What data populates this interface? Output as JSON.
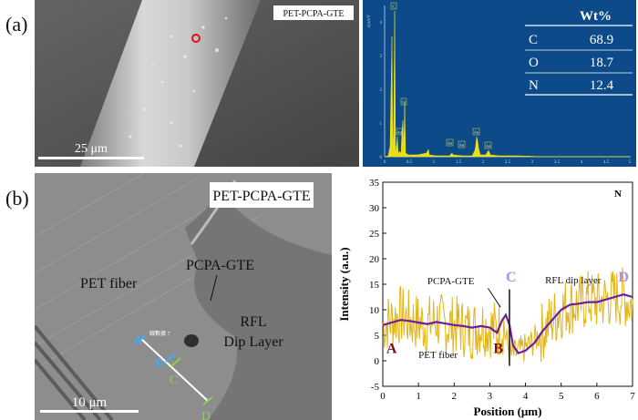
{
  "figure": {
    "panel_a_label": "(a)",
    "panel_b_label": "(b)"
  },
  "panel_a": {
    "sem_tag": "PET-PCPA-GTE",
    "scale_bar": "25 μm",
    "eds": {
      "table_header": "Wt%",
      "rows": [
        {
          "element": "C",
          "value": "68.9"
        },
        {
          "element": "O",
          "value": "18.7"
        },
        {
          "element": "N",
          "value": "12.4"
        }
      ],
      "peak_labels": [
        "C",
        "O",
        "Au",
        "Au",
        "Au",
        "Au",
        "Au"
      ],
      "x_ticks": [
        "0",
        "0.5",
        "1",
        "1.5",
        "2",
        "2.5",
        "3",
        "3.5",
        "4",
        "4.5",
        "5"
      ],
      "y_ticks": [
        "0",
        "1",
        "2",
        "3",
        "4"
      ],
      "y_unit": "cps/eV",
      "colors": {
        "background": "#0d4a8a",
        "spectrum": "#e9df1c",
        "table_line": "#ffffff"
      }
    }
  },
  "panel_b": {
    "sem_tag": "PET-PCPA-GTE",
    "scale_bar": "10 μm",
    "labels": {
      "pet_fiber": "PET fiber",
      "pcpa_gte": "PCPA-GTE",
      "rfl_line1": "RFL",
      "rfl_line2": "Dip Layer",
      "line_tag": "線數據 7"
    },
    "points": [
      "A",
      "B",
      "C",
      "D"
    ]
  },
  "chart_data": {
    "type": "line",
    "title": "",
    "xlabel": "Position (μm)",
    "ylabel": "Intensity (a.u.)",
    "xlim": [
      0,
      7
    ],
    "ylim": [
      -5,
      35
    ],
    "x_ticks": [
      0,
      1,
      2,
      3,
      4,
      5,
      6,
      7
    ],
    "y_ticks": [
      -5,
      0,
      5,
      10,
      15,
      20,
      25,
      30,
      35
    ],
    "legend": "N",
    "series": [
      {
        "name": "raw",
        "color": "#e3b417",
        "x": [
          0,
          0.25,
          0.5,
          0.75,
          1,
          1.25,
          1.5,
          1.75,
          2,
          2.25,
          2.5,
          2.75,
          3,
          3.2,
          3.4,
          3.5,
          3.6,
          3.75,
          4,
          4.25,
          4.5,
          4.75,
          5,
          5.25,
          5.5,
          5.75,
          6,
          6.25,
          6.5,
          6.75,
          7
        ],
        "y": [
          7,
          8,
          9,
          8,
          7.5,
          7,
          8,
          7,
          7,
          6.5,
          6,
          7,
          6.5,
          6,
          7,
          3,
          1,
          1.5,
          2.5,
          4,
          6,
          8,
          10,
          11,
          11,
          12,
          11.5,
          12,
          12.5,
          12.5,
          11
        ]
      },
      {
        "name": "smoothed",
        "color": "#6b1e9e",
        "x": [
          0,
          0.25,
          0.5,
          0.75,
          1,
          1.25,
          1.5,
          1.75,
          2,
          2.25,
          2.5,
          2.75,
          3,
          3.2,
          3.35,
          3.45,
          3.55,
          3.65,
          3.8,
          4,
          4.25,
          4.5,
          4.75,
          5,
          5.25,
          5.5,
          5.75,
          6,
          6.25,
          6.5,
          6.75,
          7
        ],
        "y": [
          7,
          7.5,
          8,
          7.8,
          7.5,
          7.2,
          7.6,
          7.3,
          7,
          6.8,
          6.5,
          6.8,
          6.5,
          5.5,
          8,
          9,
          7,
          3,
          1.5,
          2,
          3.5,
          6,
          8,
          10,
          11,
          11.2,
          11.5,
          11.5,
          12,
          12.5,
          13,
          12.5
        ]
      }
    ],
    "annotations": [
      {
        "text": "A",
        "color": "#7a1010"
      },
      {
        "text": "B",
        "color": "#7a1010"
      },
      {
        "text": "C",
        "color": "#b68ae6"
      },
      {
        "text": "D",
        "color": "#b68ae6"
      },
      {
        "text": "PCPA-GTE",
        "color": "#111111"
      },
      {
        "text": "RFL dip layer",
        "color": "#111111"
      },
      {
        "text": "PET fiber",
        "color": "#111111"
      }
    ]
  }
}
